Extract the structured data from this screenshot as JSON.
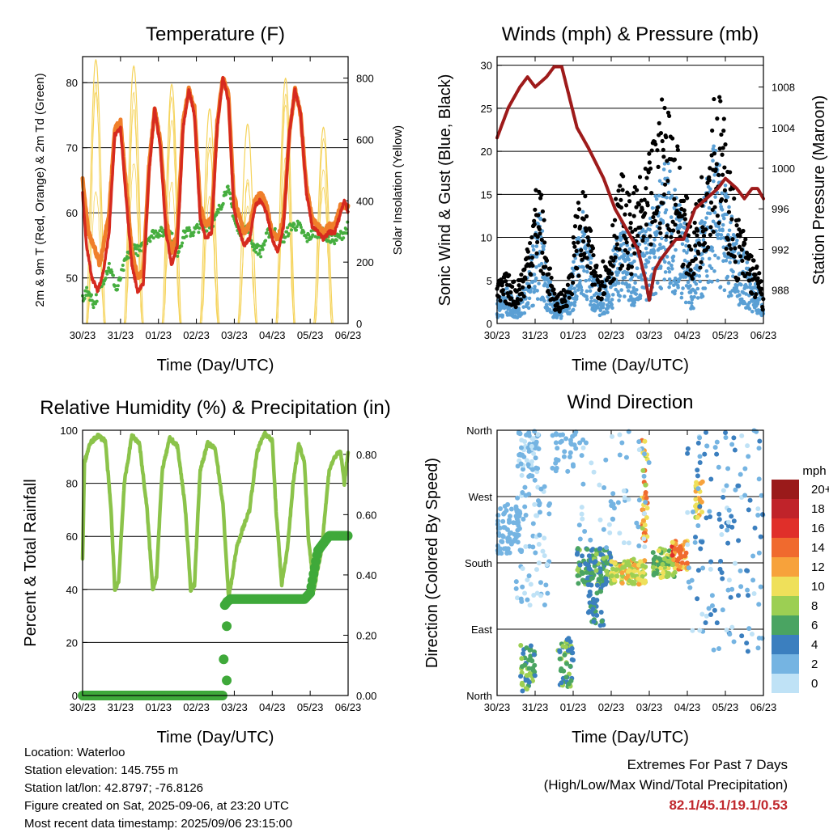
{
  "colors": {
    "temp": "#d62a1f",
    "temp9m": "#f07f2a",
    "dew": "#46ae3f",
    "solar": "#f5d35a",
    "wind": "#5a9fd4",
    "gust": "#000000",
    "pressure": "#9e1b1b",
    "rh": "#8bc34a",
    "precip": "#3fa93a",
    "extreme": "#c0282d"
  },
  "time_ticks": [
    "30/23",
    "31/23",
    "01/23",
    "02/23",
    "03/23",
    "04/23",
    "05/23",
    "06/23"
  ],
  "chart_data": [
    {
      "id": "temperature",
      "type": "line",
      "title": "Temperature (F)",
      "xlabel": "Time (Day/UTC)",
      "ylabel": "2m & 9m T (Red, Orange) & 2m Td (Green)",
      "y2label": "Solar Insolation (Yellow)",
      "ylim": [
        43,
        84
      ],
      "yticks": [
        50,
        60,
        70,
        80
      ],
      "y2lim": [
        0,
        870
      ],
      "y2ticks": [
        0,
        200,
        400,
        600,
        800
      ],
      "x_days": [
        0,
        7
      ],
      "series": [
        {
          "key": "temp2m",
          "axis": "y",
          "x": [
            0,
            0.1,
            0.25,
            0.4,
            0.55,
            0.7,
            0.85,
            1.0,
            1.15,
            1.3,
            1.45,
            1.6,
            1.75,
            1.9,
            2.05,
            2.2,
            2.35,
            2.5,
            2.65,
            2.8,
            2.95,
            3.1,
            3.25,
            3.4,
            3.55,
            3.7,
            3.85,
            3.98,
            4.1,
            4.25,
            4.4,
            4.55,
            4.7,
            4.85,
            5.0,
            5.15,
            5.3,
            5.45,
            5.6,
            5.75,
            5.9,
            6.05,
            6.2,
            6.35,
            6.5,
            6.65,
            6.8,
            6.9,
            7.0
          ],
          "values": [
            63,
            55,
            50,
            48,
            51,
            57,
            72,
            73,
            62,
            52,
            48,
            49,
            66,
            76,
            70,
            57,
            52,
            55,
            73,
            79,
            75,
            59,
            56,
            57,
            73,
            81,
            77,
            61,
            58,
            55,
            56,
            61,
            62,
            60,
            56,
            54,
            58,
            72,
            79,
            75,
            63,
            58,
            57,
            56,
            57,
            57,
            60,
            62,
            60
          ]
        },
        {
          "key": "temp9m",
          "axis": "y",
          "x": [
            0,
            0.15,
            0.3,
            0.45,
            0.55,
            0.7,
            0.85,
            1.0,
            1.15,
            1.3,
            1.45,
            1.6,
            1.75,
            1.9,
            2.05,
            2.2,
            2.35,
            2.5,
            2.65,
            2.8,
            2.95,
            3.1,
            3.25,
            3.4,
            3.55,
            3.7,
            3.85,
            3.98,
            4.1,
            4.25,
            4.4,
            4.55,
            4.7,
            4.85,
            5.0,
            5.15,
            5.3,
            5.45,
            5.6,
            5.75,
            5.9,
            6.05,
            6.2,
            6.35,
            6.5,
            6.65,
            6.8,
            7.0
          ],
          "values": [
            65,
            57,
            55,
            52,
            55,
            60,
            73,
            74,
            64,
            54,
            50,
            51,
            67,
            76,
            71,
            59,
            54,
            57,
            74,
            79,
            76,
            61,
            58,
            59,
            74,
            81,
            78,
            63,
            60,
            57,
            58,
            62,
            63,
            61,
            57,
            56,
            59,
            72,
            79,
            75,
            64,
            59,
            58,
            57,
            58,
            58,
            61,
            61
          ]
        },
        {
          "key": "dew2m",
          "axis": "y",
          "x": [
            0,
            0.15,
            0.3,
            0.5,
            0.7,
            0.9,
            1.0,
            1.1,
            1.3,
            1.5,
            1.7,
            1.9,
            2.1,
            2.3,
            2.5,
            2.7,
            2.9,
            3.1,
            3.3,
            3.5,
            3.7,
            3.8,
            3.9,
            4.0,
            4.1,
            4.3,
            4.5,
            4.7,
            4.9,
            5.1,
            5.3,
            5.5,
            5.7,
            5.9,
            6.1,
            6.3,
            6.5,
            6.7,
            6.9,
            7.0
          ],
          "values": [
            47,
            48,
            46,
            49,
            52,
            48,
            50,
            52,
            55,
            54,
            56,
            57,
            57,
            57,
            54,
            57,
            57,
            58,
            58,
            59,
            62,
            64,
            62,
            59,
            57,
            58,
            55,
            54,
            57,
            57,
            56,
            58,
            58,
            56,
            57,
            57,
            56,
            56,
            57,
            58
          ]
        }
      ],
      "solar_days": [
        {
          "x": 0.35,
          "peak": 860
        },
        {
          "x": 1.35,
          "peak": 840
        },
        {
          "x": 2.35,
          "peak": 780
        },
        {
          "x": 3.35,
          "peak": 700
        },
        {
          "x": 4.35,
          "peak": 650
        },
        {
          "x": 5.35,
          "peak": 800
        },
        {
          "x": 6.35,
          "peak": 640
        }
      ]
    },
    {
      "id": "winds",
      "type": "scatter",
      "title": "Winds (mph) & Pressure (mb)",
      "xlabel": "Time (Day/UTC)",
      "ylabel": "Sonic Wind & Gust (Blue, Black)",
      "y2label": "Station Pressure (Maroon)",
      "ylim": [
        0,
        31
      ],
      "yticks": [
        0,
        5,
        10,
        15,
        20,
        25,
        30
      ],
      "y2lim": [
        984.7,
        1011
      ],
      "y2ticks": [
        988,
        992,
        996,
        1000,
        1004,
        1008
      ],
      "x_days": [
        0,
        7
      ],
      "series": [
        {
          "key": "pressure",
          "axis": "y2",
          "x": [
            0,
            0.3,
            0.6,
            0.8,
            1.0,
            1.3,
            1.5,
            1.7,
            1.9,
            2.1,
            2.4,
            2.8,
            3.1,
            3.4,
            3.7,
            3.9,
            4.0,
            4.15,
            4.3,
            4.5,
            4.7,
            4.9,
            5.2,
            5.5,
            5.8,
            6.0,
            6.3,
            6.5,
            6.7,
            6.85,
            7.0
          ],
          "values": [
            1003,
            1006,
            1008,
            1009,
            1008,
            1009,
            1010,
            1010,
            1007,
            1004,
            1002,
            999,
            996,
            994,
            992,
            989,
            987,
            990,
            991,
            992,
            993,
            993,
            996,
            997,
            998,
            999,
            998,
            997,
            998,
            998,
            997
          ]
        },
        {
          "key": "wind",
          "axis": "y",
          "x": [
            0,
            0.25,
            0.5,
            0.7,
            0.9,
            1.1,
            1.3,
            1.5,
            1.7,
            1.9,
            2.1,
            2.3,
            2.5,
            2.7,
            2.9,
            3.1,
            3.3,
            3.5,
            3.7,
            3.9,
            4.1,
            4.3,
            4.5,
            4.7,
            4.9,
            5.1,
            5.3,
            5.5,
            5.7,
            5.9,
            6.1,
            6.3,
            6.5,
            6.7,
            6.9,
            7.0
          ],
          "values": [
            2,
            3,
            2,
            3,
            6,
            10,
            5,
            2,
            2,
            3,
            7,
            10,
            5,
            3,
            4,
            7,
            9,
            6,
            8,
            8,
            10,
            13,
            14,
            11,
            9,
            5,
            8,
            12,
            15,
            13,
            10,
            7,
            6,
            4,
            3,
            2
          ]
        },
        {
          "key": "gust",
          "axis": "y",
          "x": [
            0,
            0.25,
            0.5,
            0.7,
            0.9,
            1.1,
            1.3,
            1.5,
            1.7,
            1.9,
            2.1,
            2.3,
            2.5,
            2.7,
            2.9,
            3.1,
            3.3,
            3.5,
            3.7,
            3.9,
            4.1,
            4.3,
            4.5,
            4.7,
            4.9,
            5.1,
            5.3,
            5.5,
            5.7,
            5.9,
            6.1,
            6.3,
            6.5,
            6.7,
            6.9,
            7.0
          ],
          "values": [
            4,
            5,
            4,
            6,
            11,
            15,
            8,
            3,
            3,
            5,
            12,
            13,
            8,
            6,
            7,
            12,
            15,
            12,
            14,
            15,
            18,
            22,
            22,
            19,
            14,
            10,
            13,
            18,
            24,
            22,
            16,
            11,
            9,
            7,
            5,
            3
          ]
        }
      ]
    },
    {
      "id": "humidity",
      "type": "line",
      "title": "Relative Humidity (%) & Precipitation (in)",
      "xlabel": "Time (Day/UTC)",
      "ylabel": "Percent & Total Rainfall",
      "ylim": [
        0,
        100
      ],
      "yticks": [
        0,
        20,
        40,
        60,
        80,
        100
      ],
      "y2lim": [
        0,
        0.88
      ],
      "y2ticks": [
        "0.00",
        "0.20",
        "0.40",
        "0.60",
        "0.80"
      ],
      "x_days": [
        0,
        7
      ],
      "series": [
        {
          "key": "rh",
          "axis": "y",
          "x": [
            0,
            0.05,
            0.2,
            0.4,
            0.6,
            0.75,
            0.85,
            0.95,
            1.1,
            1.3,
            1.5,
            1.7,
            1.85,
            1.95,
            2.1,
            2.3,
            2.5,
            2.7,
            2.85,
            2.95,
            3.1,
            3.3,
            3.5,
            3.7,
            3.85,
            3.95,
            4.05,
            4.2,
            4.4,
            4.6,
            4.8,
            5.0,
            5.1,
            5.25,
            5.4,
            5.55,
            5.7,
            5.85,
            5.95,
            6.1,
            6.3,
            6.5,
            6.65,
            6.8,
            6.9,
            7.0
          ],
          "values": [
            51,
            88,
            95,
            98,
            96,
            70,
            40,
            43,
            80,
            98,
            95,
            70,
            40,
            45,
            85,
            97,
            94,
            72,
            40,
            42,
            85,
            95,
            93,
            72,
            37,
            45,
            55,
            62,
            70,
            92,
            99,
            96,
            70,
            42,
            55,
            80,
            95,
            88,
            60,
            40,
            55,
            85,
            90,
            92,
            80,
            92
          ]
        },
        {
          "key": "precip",
          "axis": "y2",
          "x": [
            0,
            0.5,
            1.0,
            1.5,
            2.0,
            2.5,
            3.0,
            3.5,
            3.7,
            3.75,
            3.76,
            3.8,
            3.9,
            4.2,
            4.6,
            5.0,
            5.4,
            5.7,
            5.85,
            6.0,
            6.2,
            6.5,
            6.8,
            7.0
          ],
          "values": [
            0,
            0,
            0,
            0,
            0,
            0,
            0,
            0,
            0,
            0.3,
            0.3,
            0.31,
            0.32,
            0.32,
            0.32,
            0.32,
            0.32,
            0.32,
            0.32,
            0.34,
            0.48,
            0.53,
            0.53,
            0.53
          ]
        }
      ]
    },
    {
      "id": "direction",
      "type": "scatter",
      "title": "Wind Direction",
      "xlabel": "Time (Day/UTC)",
      "ylabel": "Direction (Colored By Speed)",
      "yticks": [
        "North",
        "East",
        "South",
        "West",
        "North"
      ],
      "legend_title": "mph",
      "legend_labels": [
        "20+",
        "18",
        "16",
        "14",
        "12",
        "10",
        "8",
        "6",
        "4",
        "2",
        "0"
      ],
      "legend_colors": [
        "#9a1a1a",
        "#c0232a",
        "#e02f2a",
        "#f06a2e",
        "#f7a23b",
        "#efe05a",
        "#9ccf53",
        "#4aa462",
        "#3b7fbf",
        "#75b4e2",
        "#bfe2f6"
      ],
      "x_days": [
        0,
        7
      ]
    }
  ],
  "info": {
    "location": "Location: Waterloo",
    "elevation": "Station elevation: 145.755 m",
    "latlon": "Station lat/lon: 42.8797; -76.8126",
    "created": "Figure created on Sat, 2025-09-06, at 23:20 UTC",
    "recent": "Most recent data timestamp: 2025/09/06 23:15:00"
  },
  "extremes": {
    "title": "Extremes For Past 7 Days",
    "subtitle": "(High/Low/Max Wind/Total Precipitation)",
    "values": "82.1/45.1/19.1/0.53"
  }
}
